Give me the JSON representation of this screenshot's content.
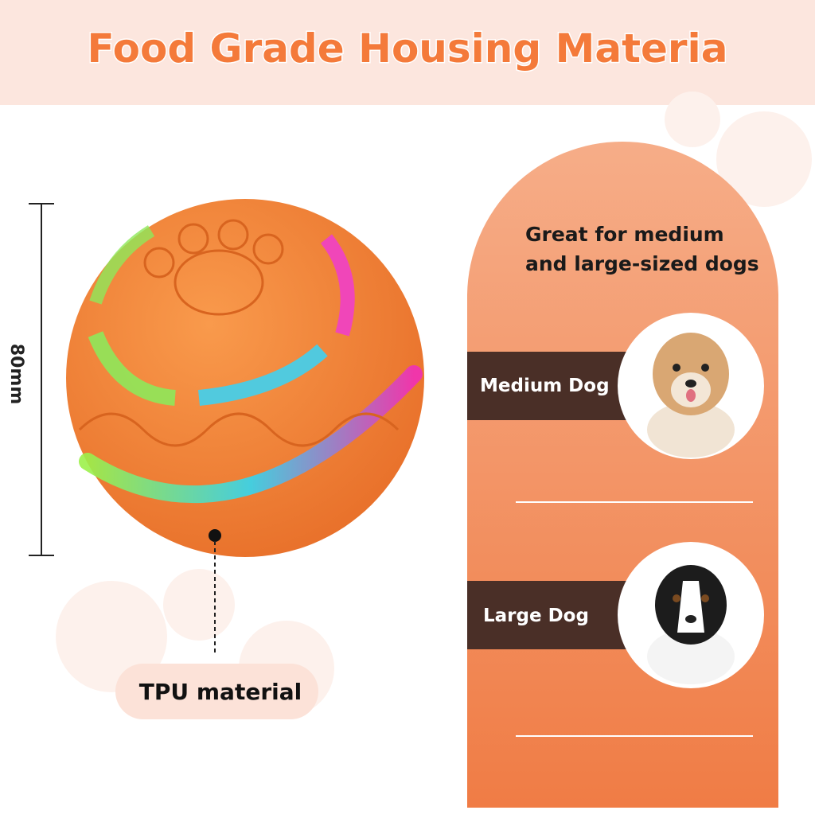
{
  "header": {
    "title": "Food Grade Housing Materia"
  },
  "ball": {
    "dimension": "80mm",
    "material": "TPU material"
  },
  "panel": {
    "lines": [
      "Great for medium",
      "and large-sized dogs"
    ],
    "sizes": [
      {
        "label": "Medium Dog"
      },
      {
        "label": "Large Dog"
      }
    ]
  }
}
